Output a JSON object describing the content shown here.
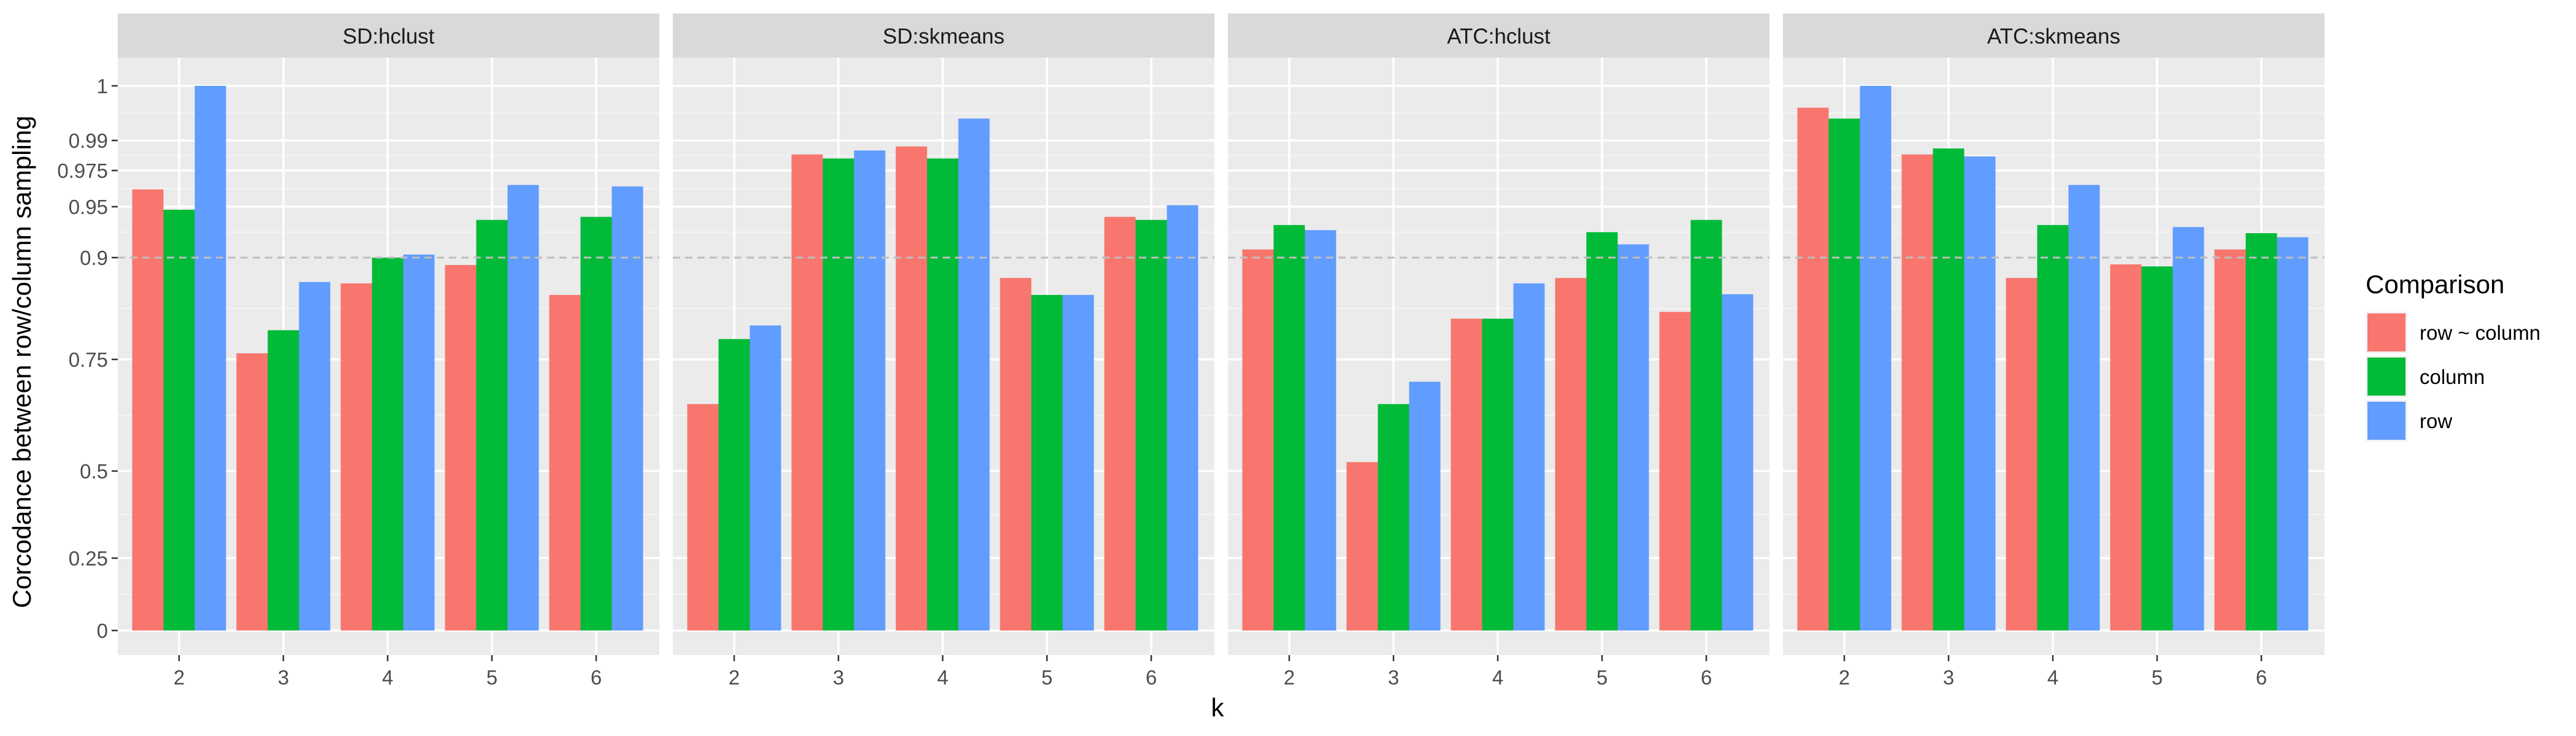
{
  "chart_data": {
    "type": "bar",
    "title": "",
    "xlabel": "k",
    "ylabel": "Corcodance between row/column sampling",
    "categories": [
      "2",
      "3",
      "4",
      "5",
      "6"
    ],
    "y_ticks": [
      "0",
      "0.25",
      "0.5",
      "0.75",
      "0.9",
      "0.95",
      "0.975",
      "0.99",
      "1"
    ],
    "reference_line": 0.9,
    "scale": "nonlinear (axis spacing expands toward 1)",
    "grid": true,
    "legend": {
      "title": "Comparison",
      "position": "right",
      "entries": [
        {
          "label": "row ~ column",
          "color": "#F8766D"
        },
        {
          "label": "column",
          "color": "#00BA38"
        },
        {
          "label": "row",
          "color": "#619CFF"
        }
      ]
    },
    "panels": [
      {
        "title": "SD:hclust",
        "series": [
          {
            "name": "row ~ column",
            "values": [
              0.962,
              0.759,
              0.862,
              0.889,
              0.845
            ]
          },
          {
            "name": "column",
            "values": [
              0.947,
              0.793,
              0.9,
              0.937,
              0.94
            ]
          },
          {
            "name": "row",
            "values": [
              1.0,
              0.864,
              0.903,
              0.965,
              0.964
            ]
          }
        ]
      },
      {
        "title": "SD:skmeans",
        "series": [
          {
            "name": "row ~ column",
            "values": [
              0.65,
              0.983,
              0.987,
              0.87,
              0.94
            ]
          },
          {
            "name": "column",
            "values": [
              0.78,
              0.981,
              0.981,
              0.845,
              0.937
            ]
          },
          {
            "name": "row",
            "values": [
              0.8,
              0.985,
              0.994,
              0.845,
              0.951
            ]
          }
        ]
      },
      {
        "title": "ATC:hclust",
        "series": [
          {
            "name": "row ~ column",
            "values": [
              0.908,
              0.52,
              0.81,
              0.87,
              0.82
            ]
          },
          {
            "name": "column",
            "values": [
              0.932,
              0.65,
              0.81,
              0.925,
              0.937
            ]
          },
          {
            "name": "row",
            "values": [
              0.927,
              0.7,
              0.862,
              0.913,
              0.846
            ]
          }
        ]
      },
      {
        "title": "ATC:skmeans",
        "series": [
          {
            "name": "row ~ column",
            "values": [
              0.996,
              0.983,
              0.87,
              0.89,
              0.908
            ]
          },
          {
            "name": "column",
            "values": [
              0.994,
              0.986,
              0.932,
              0.887,
              0.924
            ]
          },
          {
            "name": "row",
            "values": [
              1.0,
              0.982,
              0.965,
              0.93,
              0.92
            ]
          }
        ]
      }
    ]
  }
}
